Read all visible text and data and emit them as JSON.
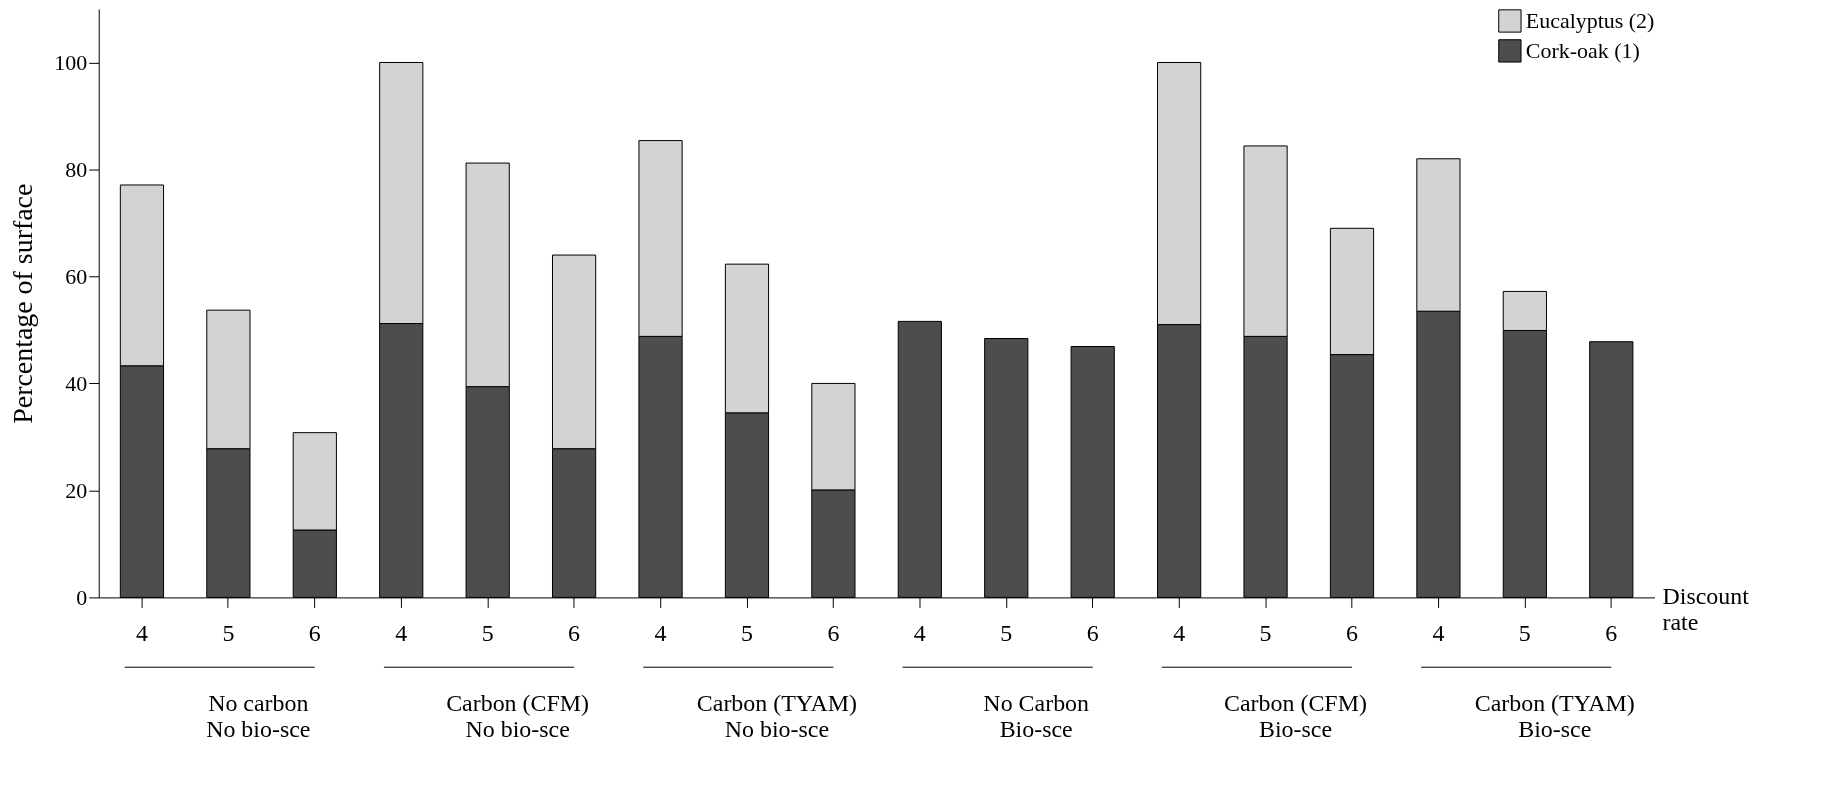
{
  "chart_data": {
    "type": "bar",
    "stacked": true,
    "categories": [
      "4",
      "5",
      "6",
      "4",
      "5",
      "6",
      "4",
      "5",
      "6",
      "4",
      "5",
      "6",
      "4",
      "5",
      "6",
      "4",
      "5",
      "6"
    ],
    "series": [
      {
        "name": "Cork-oak (1)",
        "color": "#4d4d4d",
        "values": [
          43.3,
          27.8,
          12.6,
          51.2,
          39.4,
          27.8,
          48.8,
          34.5,
          20.1,
          51.6,
          48.4,
          46.9,
          51.0,
          48.8,
          45.4,
          53.5,
          49.9,
          47.8
        ]
      },
      {
        "name": "Eucalyptus (2)",
        "color": "#d3d3d3",
        "values": [
          33.8,
          25.9,
          18.2,
          48.8,
          41.8,
          36.2,
          36.6,
          27.8,
          19.9,
          null,
          null,
          null,
          49.0,
          35.6,
          23.6,
          28.5,
          7.3,
          null
        ]
      }
    ],
    "xlabel": "Discount rate",
    "ylabel": "Percentage of surface",
    "ylim": [
      0,
      110
    ],
    "yticks": [
      0,
      20,
      40,
      60,
      80,
      100
    ],
    "annotations": [
      "No carbon\nNo bio-sce",
      "Carbon (CFM)\nNo bio-sce",
      "Carbon (TYAM)\nNo bio-sce",
      "No Carbon\nBio-sce",
      "Carbon (CFM)\nBio-sce",
      "Carbon (TYAM)\nBio-sce"
    ],
    "legend": "top right",
    "grid": false
  }
}
